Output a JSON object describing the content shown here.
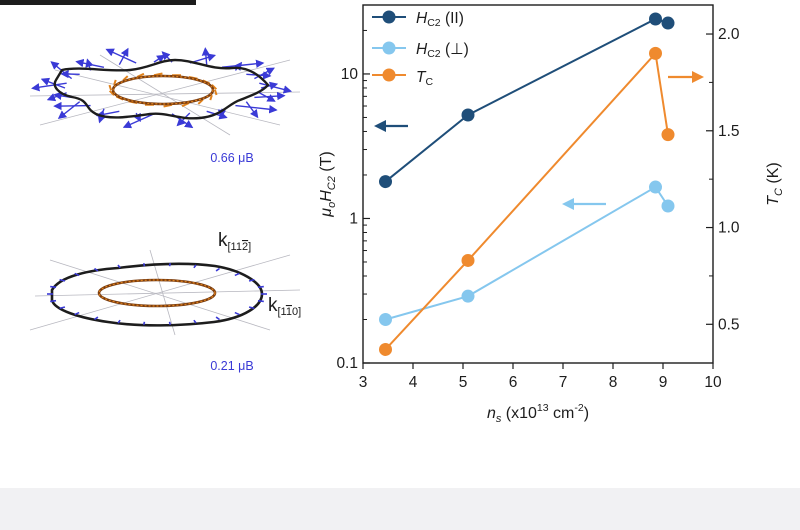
{
  "insets": {
    "top": {
      "moment_label": "0.66 μB",
      "arrow_color": "#3a3ad6",
      "ring_color": "#e0821c"
    },
    "bottom": {
      "moment_label": "0.21 μB",
      "k_top": {
        "base": "k",
        "sub": "[11",
        "sub_bar": "2",
        "sub_end": "]"
      },
      "k_right": {
        "base": "k",
        "sub": "[1",
        "sub_bar": "1",
        "sub_end": "0]"
      }
    }
  },
  "chart_data": {
    "type": "line",
    "x_label": {
      "base": "n",
      "sub": "s",
      "rest": " (x10",
      "sup": "13",
      "unit": " cm",
      "sup2": "-2",
      "end": ")"
    },
    "y_left_label": {
      "mu": "μ",
      "o": "o",
      "H": "H",
      "sub": "C2",
      "unit": " (T)"
    },
    "y_right_label": {
      "T": "T",
      "sub": "C",
      "unit": " (K)"
    },
    "x_range": [
      3,
      10
    ],
    "x_ticks": [
      "3",
      "4",
      "5",
      "6",
      "7",
      "8",
      "9",
      "10"
    ],
    "y_left": {
      "scale": "log",
      "range": [
        0.1,
        30
      ],
      "ticks": [
        "0.1",
        "1",
        "10"
      ]
    },
    "y_right": {
      "scale": "linear",
      "range": [
        0.3,
        2.15
      ],
      "ticks": [
        "0.5",
        "1.0",
        "1.5",
        "2.0"
      ]
    },
    "legend_position": "top-left",
    "series": [
      {
        "key": "hc2_par",
        "legend": {
          "base": "H",
          "sub": "C2",
          "tail": " (II)"
        },
        "axis": "left",
        "color": "#1f4e79",
        "x": [
          3.45,
          5.1,
          8.85,
          9.1
        ],
        "y": [
          1.8,
          5.2,
          24,
          22.5
        ]
      },
      {
        "key": "hc2_perp",
        "legend": {
          "base": "H",
          "sub": "C2",
          "tail": " (⊥)"
        },
        "axis": "left",
        "color": "#85c7ee",
        "x": [
          3.45,
          5.1,
          8.85,
          9.1
        ],
        "y": [
          0.2,
          0.29,
          1.65,
          1.22
        ]
      },
      {
        "key": "tc",
        "legend": {
          "base": "T",
          "sub": "C",
          "tail": ""
        },
        "axis": "right",
        "color": "#ef8a2e",
        "x": [
          3.45,
          5.1,
          8.85,
          9.1
        ],
        "y": [
          0.37,
          0.83,
          1.9,
          1.48
        ]
      }
    ]
  }
}
